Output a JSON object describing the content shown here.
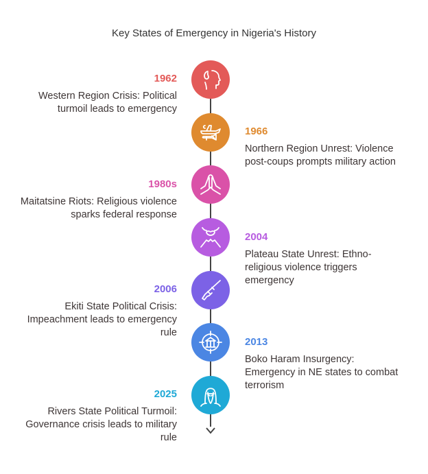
{
  "title": "Key States of Emergency in Nigeria's History",
  "events": [
    {
      "year": "1962",
      "description": "Western Region Crisis: Political turmoil leads to emergency",
      "color": "#e35a58",
      "icon": "head-fire-icon",
      "side": "left"
    },
    {
      "year": "1966",
      "description": "Northern Region Unrest: Violence post-coups prompts military action",
      "color": "#df8a2f",
      "icon": "plane-bomb-icon",
      "side": "right"
    },
    {
      "year": "1980s",
      "description": "Maitatsine Riots: Religious violence sparks federal response",
      "color": "#da52a8",
      "icon": "praying-hands-icon",
      "side": "left"
    },
    {
      "year": "2004",
      "description": "Plateau State Unrest: Ethno-religious violence triggers emergency",
      "color": "#b75ce0",
      "icon": "volcano-eruption-icon",
      "side": "right"
    },
    {
      "year": "2006",
      "description": "Ekiti State Political Crisis: Impeachment leads to emergency rule",
      "color": "#7c62e6",
      "icon": "rifle-icon",
      "side": "left"
    },
    {
      "year": "2013",
      "description": "Boko Haram Insurgency: Emergency in NE states to combat terrorism",
      "color": "#4b86e3",
      "icon": "targeted-building-icon",
      "side": "right"
    },
    {
      "year": "2025",
      "description": "Rivers State Political Turmoil: Governance crisis leads to military rule",
      "color": "#1fa9d6",
      "icon": "masked-person-icon",
      "side": "left"
    }
  ]
}
